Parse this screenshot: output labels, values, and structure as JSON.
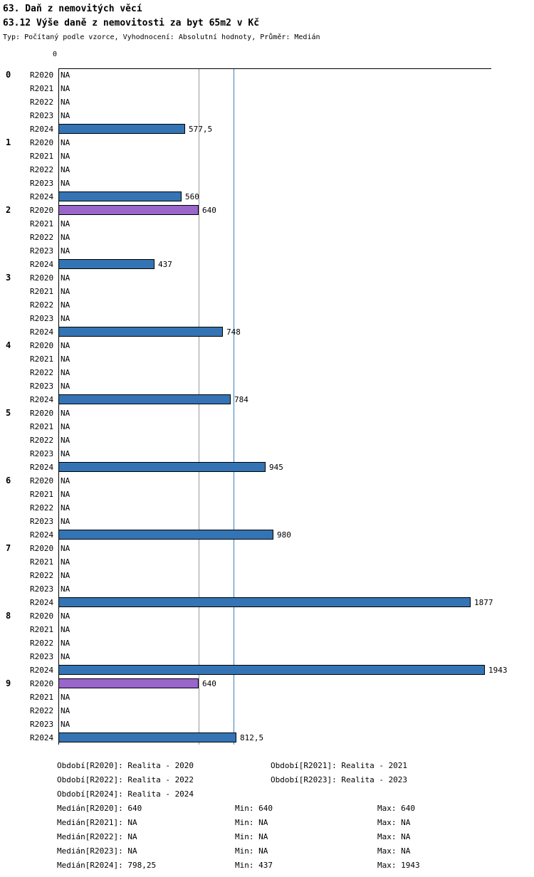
{
  "title": "63. Daň z nemovitých věcí",
  "subtitle": "63.12 Výše daně z nemovitosti za byt 65m2 v Kč",
  "meta": "Typ: Počítaný podle vzorce, Vyhodnocení: Absolutní hodnoty, Průměr: Medián",
  "chart_data": {
    "type": "bar",
    "orientation": "horizontal",
    "title": "63.12 Výše daně z nemovitosti za byt 65m2 v Kč",
    "xlabel": "Kč",
    "axis_zero_label": "0",
    "xlim": [
      0,
      1972
    ],
    "grid": false,
    "categories": [
      "0",
      "1",
      "2",
      "3",
      "4",
      "5",
      "6",
      "7",
      "8",
      "9"
    ],
    "row_periods": [
      "R2020",
      "R2021",
      "R2022",
      "R2023",
      "R2024"
    ],
    "series_colors": {
      "R2020": "#9966CC",
      "R2024": "#3474B4",
      "default": "#3474B4"
    },
    "reference_lines": [
      {
        "name": "median-r2020-line",
        "value": 640,
        "color": "#999999"
      },
      {
        "name": "median-r2024-line",
        "value": 798.25,
        "color": "#3E7EC1"
      }
    ],
    "groups": [
      {
        "label": "0",
        "bars": [
          {
            "period": "R2020",
            "value": null,
            "text": "NA"
          },
          {
            "period": "R2021",
            "value": null,
            "text": "NA"
          },
          {
            "period": "R2022",
            "value": null,
            "text": "NA"
          },
          {
            "period": "R2023",
            "value": null,
            "text": "NA"
          },
          {
            "period": "R2024",
            "value": 577.5,
            "text": "577,5"
          }
        ]
      },
      {
        "label": "1",
        "bars": [
          {
            "period": "R2020",
            "value": null,
            "text": "NA"
          },
          {
            "period": "R2021",
            "value": null,
            "text": "NA"
          },
          {
            "period": "R2022",
            "value": null,
            "text": "NA"
          },
          {
            "period": "R2023",
            "value": null,
            "text": "NA"
          },
          {
            "period": "R2024",
            "value": 560,
            "text": "560"
          }
        ]
      },
      {
        "label": "2",
        "bars": [
          {
            "period": "R2020",
            "value": 640,
            "text": "640"
          },
          {
            "period": "R2021",
            "value": null,
            "text": "NA"
          },
          {
            "period": "R2022",
            "value": null,
            "text": "NA"
          },
          {
            "period": "R2023",
            "value": null,
            "text": "NA"
          },
          {
            "period": "R2024",
            "value": 437,
            "text": "437"
          }
        ]
      },
      {
        "label": "3",
        "bars": [
          {
            "period": "R2020",
            "value": null,
            "text": "NA"
          },
          {
            "period": "R2021",
            "value": null,
            "text": "NA"
          },
          {
            "period": "R2022",
            "value": null,
            "text": "NA"
          },
          {
            "period": "R2023",
            "value": null,
            "text": "NA"
          },
          {
            "period": "R2024",
            "value": 748,
            "text": "748"
          }
        ]
      },
      {
        "label": "4",
        "bars": [
          {
            "period": "R2020",
            "value": null,
            "text": "NA"
          },
          {
            "period": "R2021",
            "value": null,
            "text": "NA"
          },
          {
            "period": "R2022",
            "value": null,
            "text": "NA"
          },
          {
            "period": "R2023",
            "value": null,
            "text": "NA"
          },
          {
            "period": "R2024",
            "value": 784,
            "text": "784"
          }
        ]
      },
      {
        "label": "5",
        "bars": [
          {
            "period": "R2020",
            "value": null,
            "text": "NA"
          },
          {
            "period": "R2021",
            "value": null,
            "text": "NA"
          },
          {
            "period": "R2022",
            "value": null,
            "text": "NA"
          },
          {
            "period": "R2023",
            "value": null,
            "text": "NA"
          },
          {
            "period": "R2024",
            "value": 945,
            "text": "945"
          }
        ]
      },
      {
        "label": "6",
        "bars": [
          {
            "period": "R2020",
            "value": null,
            "text": "NA"
          },
          {
            "period": "R2021",
            "value": null,
            "text": "NA"
          },
          {
            "period": "R2022",
            "value": null,
            "text": "NA"
          },
          {
            "period": "R2023",
            "value": null,
            "text": "NA"
          },
          {
            "period": "R2024",
            "value": 980,
            "text": "980"
          }
        ]
      },
      {
        "label": "7",
        "bars": [
          {
            "period": "R2020",
            "value": null,
            "text": "NA"
          },
          {
            "period": "R2021",
            "value": null,
            "text": "NA"
          },
          {
            "period": "R2022",
            "value": null,
            "text": "NA"
          },
          {
            "period": "R2023",
            "value": null,
            "text": "NA"
          },
          {
            "period": "R2024",
            "value": 1877,
            "text": "1877"
          }
        ]
      },
      {
        "label": "8",
        "bars": [
          {
            "period": "R2020",
            "value": null,
            "text": "NA"
          },
          {
            "period": "R2021",
            "value": null,
            "text": "NA"
          },
          {
            "period": "R2022",
            "value": null,
            "text": "NA"
          },
          {
            "period": "R2023",
            "value": null,
            "text": "NA"
          },
          {
            "period": "R2024",
            "value": 1943,
            "text": "1943"
          }
        ]
      },
      {
        "label": "9",
        "bars": [
          {
            "period": "R2020",
            "value": 640,
            "text": "640"
          },
          {
            "period": "R2021",
            "value": null,
            "text": "NA"
          },
          {
            "period": "R2022",
            "value": null,
            "text": "NA"
          },
          {
            "period": "R2023",
            "value": null,
            "text": "NA"
          },
          {
            "period": "R2024",
            "value": 812.5,
            "text": "812,5"
          }
        ]
      }
    ]
  },
  "legend": {
    "periods": [
      {
        "name": "Období[R2020]",
        "value": "Realita - 2020"
      },
      {
        "name": "Období[R2021]",
        "value": "Realita - 2021"
      },
      {
        "name": "Období[R2022]",
        "value": "Realita - 2022"
      },
      {
        "name": "Období[R2023]",
        "value": "Realita - 2023"
      },
      {
        "name": "Období[R2024]",
        "value": "Realita - 2024"
      }
    ],
    "min_label": "Min:",
    "max_label": "Max:",
    "stats": [
      {
        "name": "Medián[R2020]",
        "median": "640",
        "min": "640",
        "max": "640"
      },
      {
        "name": "Medián[R2021]",
        "median": "NA",
        "min": "NA",
        "max": "NA"
      },
      {
        "name": "Medián[R2022]",
        "median": "NA",
        "min": "NA",
        "max": "NA"
      },
      {
        "name": "Medián[R2023]",
        "median": "NA",
        "min": "NA",
        "max": "NA"
      },
      {
        "name": "Medián[R2024]",
        "median": "798,25",
        "min": "437",
        "max": "1943"
      }
    ]
  }
}
